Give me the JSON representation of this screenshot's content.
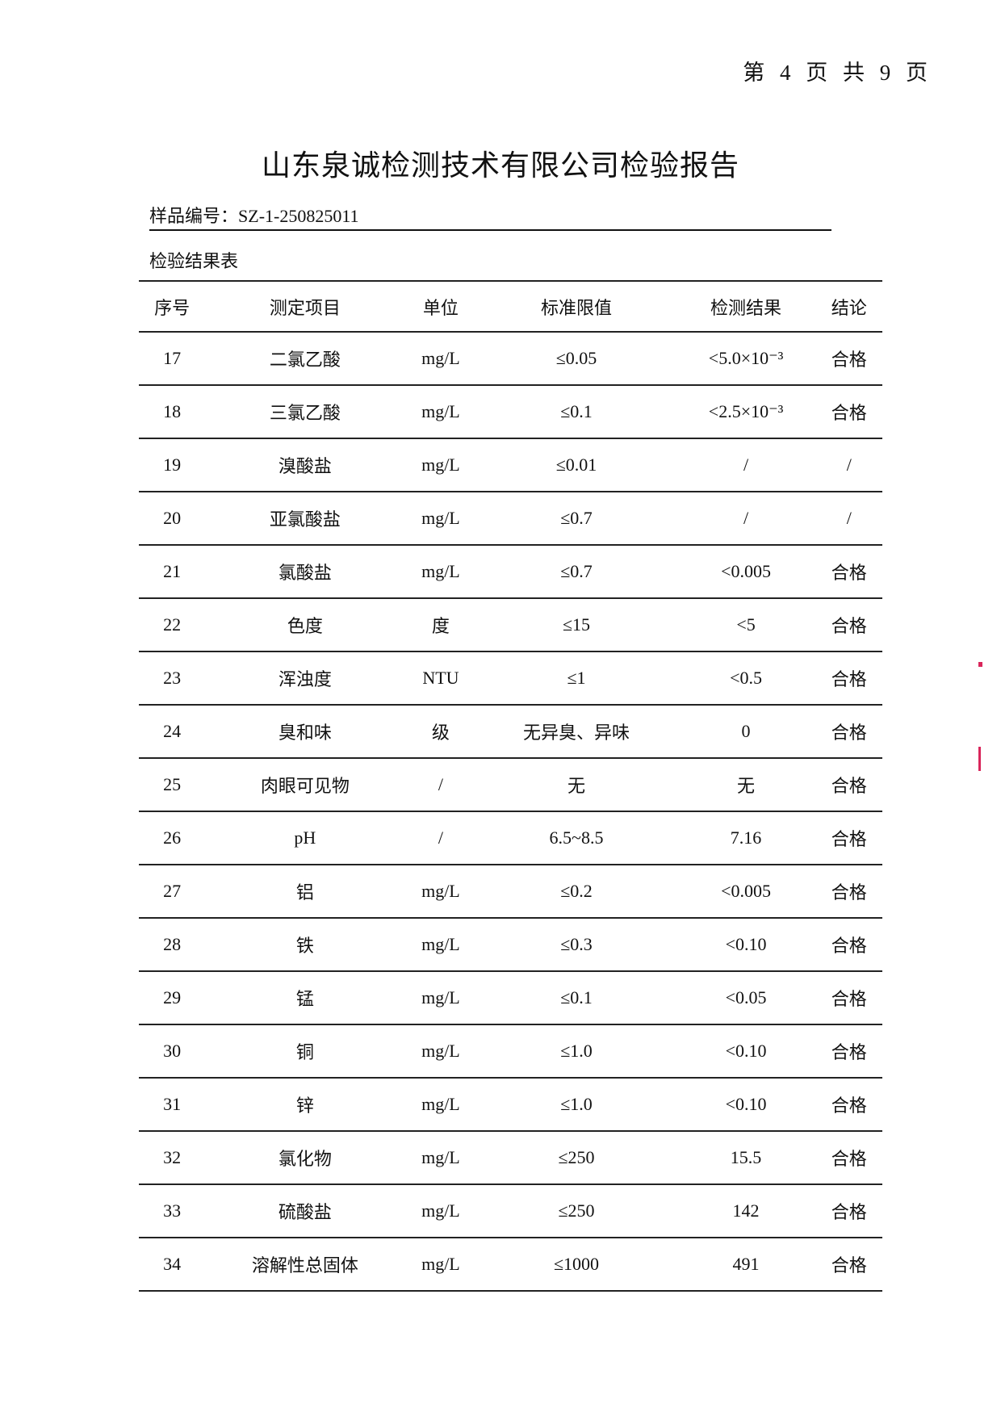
{
  "page_indicator": "第 4 页 共 9 页",
  "title": "山东泉诚检测技术有限公司检验报告",
  "sample": {
    "label": "样品编号：",
    "value": "SZ-1-250825011"
  },
  "table_title": "检验结果表",
  "columns": [
    "序号",
    "测定项目",
    "单位",
    "标准限值",
    "检测结果",
    "结论"
  ],
  "rows": [
    [
      "17",
      "二氯乙酸",
      "mg/L",
      "≤0.05",
      "<5.0×10⁻³",
      "合格"
    ],
    [
      "18",
      "三氯乙酸",
      "mg/L",
      "≤0.1",
      "<2.5×10⁻³",
      "合格"
    ],
    [
      "19",
      "溴酸盐",
      "mg/L",
      "≤0.01",
      "/",
      "/"
    ],
    [
      "20",
      "亚氯酸盐",
      "mg/L",
      "≤0.7",
      "/",
      "/"
    ],
    [
      "21",
      "氯酸盐",
      "mg/L",
      "≤0.7",
      "<0.005",
      "合格"
    ],
    [
      "22",
      "色度",
      "度",
      "≤15",
      "<5",
      "合格"
    ],
    [
      "23",
      "浑浊度",
      "NTU",
      "≤1",
      "<0.5",
      "合格"
    ],
    [
      "24",
      "臭和味",
      "级",
      "无异臭、异味",
      "0",
      "合格"
    ],
    [
      "25",
      "肉眼可见物",
      "/",
      "无",
      "无",
      "合格"
    ],
    [
      "26",
      "pH",
      "/",
      "6.5~8.5",
      "7.16",
      "合格"
    ],
    [
      "27",
      "铝",
      "mg/L",
      "≤0.2",
      "<0.005",
      "合格"
    ],
    [
      "28",
      "铁",
      "mg/L",
      "≤0.3",
      "<0.10",
      "合格"
    ],
    [
      "29",
      "锰",
      "mg/L",
      "≤0.1",
      "<0.05",
      "合格"
    ],
    [
      "30",
      "铜",
      "mg/L",
      "≤1.0",
      "<0.10",
      "合格"
    ],
    [
      "31",
      "锌",
      "mg/L",
      "≤1.0",
      "<0.10",
      "合格"
    ],
    [
      "32",
      "氯化物",
      "mg/L",
      "≤250",
      "15.5",
      "合格"
    ],
    [
      "33",
      "硫酸盐",
      "mg/L",
      "≤250",
      "142",
      "合格"
    ],
    [
      "34",
      "溶解性总固体",
      "mg/L",
      "≤1000",
      "491",
      "合格"
    ]
  ],
  "colors": {
    "stamp": "#d9265b"
  }
}
